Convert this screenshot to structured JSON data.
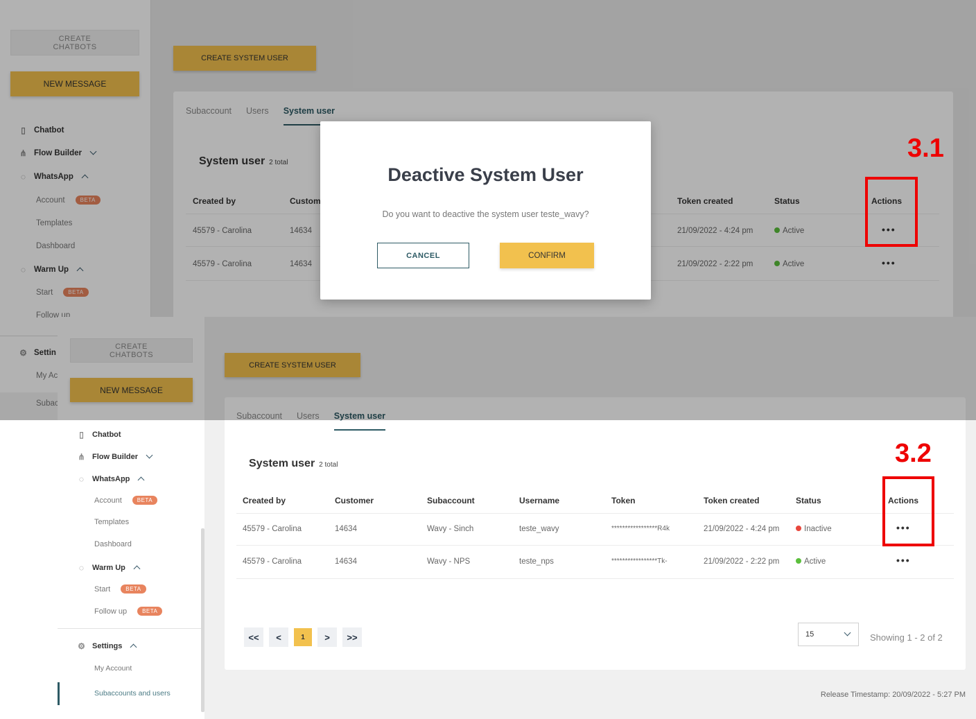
{
  "sidebar": {
    "create_chatbots": "CREATE\nCHATBOTS",
    "new_message": "NEW MESSAGE",
    "chatbot": "Chatbot",
    "flow_builder": "Flow Builder",
    "whatsapp": "WhatsApp",
    "account": "Account",
    "templates": "Templates",
    "dashboard": "Dashboard",
    "warm_up": "Warm Up",
    "start": "Start",
    "follow_up": "Follow up",
    "beta": "BETA",
    "settings": "Settings",
    "my_account": "My Account",
    "subaccounts_and_users": "Subaccounts and users",
    "top_cut": {
      "follow": "Follow up",
      "settings": "Settin",
      "my_account": "My Ac",
      "subaccounts": "Subac"
    }
  },
  "header": {
    "create_system_user": "CREATE SYSTEM USER"
  },
  "tabs": [
    "Subaccount",
    "Users",
    "System user"
  ],
  "section": {
    "title": "System user",
    "count": "2 total"
  },
  "table": {
    "columns": [
      "Created by",
      "Customer",
      "Subaccount",
      "Username",
      "Token",
      "Token created",
      "Status",
      "Actions"
    ],
    "top_cut_customer": "Custom",
    "rows_before": [
      {
        "created_by": "45579 - Carolina",
        "customer": "14634",
        "token_created": "21/09/2022 - 4:24 pm",
        "status": "Active"
      },
      {
        "created_by": "45579 - Carolina",
        "customer": "14634",
        "token_created": "21/09/2022 - 2:22 pm",
        "status": "Active"
      }
    ],
    "rows_after": [
      {
        "created_by": "45579 - Carolina",
        "customer": "14634",
        "subaccount": "Wavy - Sinch",
        "username": "teste_wavy",
        "token": "*****************R4k",
        "token_created": "21/09/2022 - 4:24 pm",
        "status": "Inactive"
      },
      {
        "created_by": "45579 - Carolina",
        "customer": "14634",
        "subaccount": "Wavy - NPS",
        "username": "teste_nps",
        "token": "*****************Tk-",
        "token_created": "21/09/2022 - 2:22 pm",
        "status": "Active"
      }
    ],
    "actions_glyph": "•••"
  },
  "modal": {
    "title": "Deactive System User",
    "text": "Do you want to deactive the system user teste_wavy?",
    "cancel": "CANCEL",
    "confirm": "CONFIRM"
  },
  "pagination": {
    "first": "<<",
    "prev": "<",
    "current": "1",
    "next": ">",
    "last": ">>",
    "page_size": "15",
    "showing": "Showing 1 - 2 of 2"
  },
  "footer": {
    "release": "Release Timestamp: 20/09/2022 - 5:27 PM"
  },
  "annotations": {
    "step_1": "3.1",
    "step_2": "3.2"
  },
  "colors": {
    "accent_yellow": "#f2c14e",
    "teal": "#2d5a64",
    "active_green": "#5bbf3c",
    "inactive_red": "#e8473d",
    "beta_orange": "#e8845e",
    "annotation_red": "#ee0000"
  }
}
